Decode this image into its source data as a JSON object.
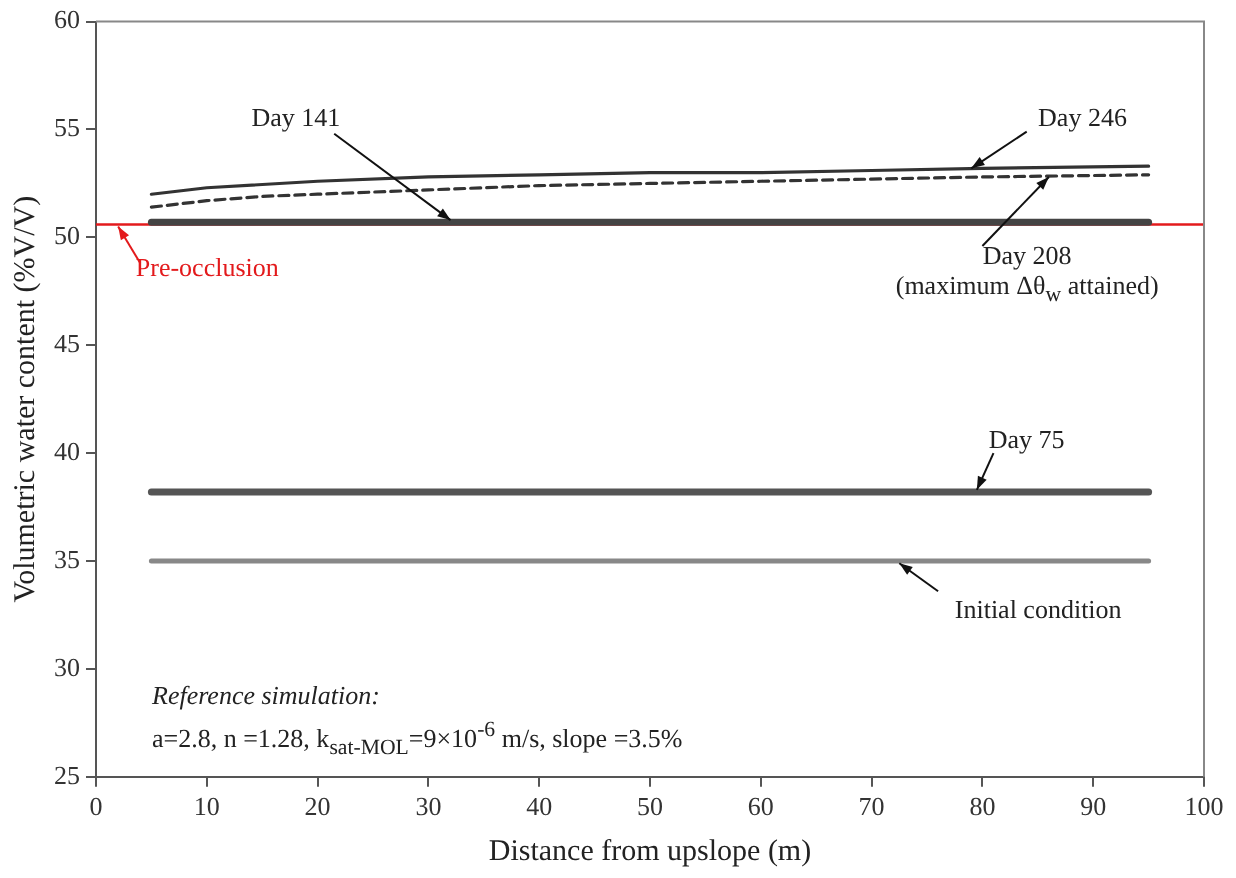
{
  "chart_data": {
    "type": "line",
    "xlabel": "Distance from upslope (m)",
    "ylabel": "Volumetric water content (%V/V)",
    "xlim": [
      0,
      100
    ],
    "xticks": [
      0,
      10,
      20,
      30,
      40,
      50,
      60,
      70,
      80,
      90,
      100
    ],
    "ylim": [
      25,
      60
    ],
    "yticks": [
      25,
      30,
      35,
      40,
      45,
      50,
      55,
      60
    ],
    "grid": false,
    "marker": "none",
    "series": [
      {
        "name": "Day 246",
        "color": "#333333",
        "line_style": "solid",
        "x": [
          5,
          10,
          20,
          30,
          40,
          50,
          60,
          70,
          80,
          95
        ],
        "values": [
          52.0,
          52.3,
          52.6,
          52.8,
          52.9,
          53.0,
          53.0,
          53.1,
          53.2,
          53.3
        ]
      },
      {
        "name": "Day 208 (maximum Δθ$_{w}$ attained)",
        "color": "#333333",
        "line_style": "dashed",
        "x": [
          5,
          10,
          15,
          20,
          30,
          40,
          50,
          60,
          70,
          80,
          95
        ],
        "values": [
          51.4,
          51.7,
          51.9,
          52.0,
          52.2,
          52.4,
          52.5,
          52.6,
          52.7,
          52.8,
          52.9
        ]
      },
      {
        "name": "Day 141",
        "color": "#444444",
        "line_style": "solid",
        "x": [
          5,
          95
        ],
        "values": [
          50.7,
          50.7
        ]
      },
      {
        "name": "Day 75",
        "color": "#555555",
        "line_style": "solid",
        "x": [
          5,
          95
        ],
        "values": [
          38.2,
          38.2
        ]
      },
      {
        "name": "Initial condition",
        "color": "#888888",
        "line_style": "solid",
        "x": [
          5,
          95
        ],
        "values": [
          35.0,
          35.0
        ]
      }
    ],
    "ref_lines": [
      {
        "axis": "y",
        "value": 50.6,
        "label": "Pre-occlusion",
        "color": "#e31a1c",
        "line_style": "solid"
      }
    ],
    "annotations": [
      "Reference simulation:",
      "a=2.8, n =1.28, k$_{sat-MOL}$=9×10$^{-6}$ m/s, slope =3.5%"
    ]
  }
}
